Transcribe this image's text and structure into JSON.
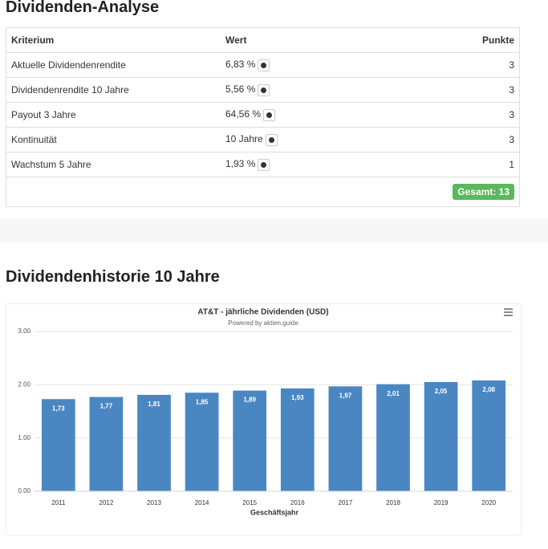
{
  "title": "Dividenden-Analyse",
  "table": {
    "header": [
      "Kriterium",
      "Wert",
      "Punkte"
    ],
    "rows": [
      [
        "Aktuelle Dividendenrendite",
        "6,83 %",
        3
      ],
      [
        "Dividendenrendite 10 Jahre",
        "5,56 %",
        3
      ],
      [
        "Payout 3 Jahre",
        "64,56 %",
        3
      ],
      [
        "Kontinuität",
        "10 Jahre",
        3
      ],
      [
        "Wachstum 5 Jahre",
        "1,93 %",
        1
      ]
    ],
    "total": "Gesamt: 13"
  },
  "section_title": "Dividendenhistorie 10 Jahre",
  "chart_data": {
    "type": "bar",
    "title": "AT&T - jährliche Dividenden (USD)",
    "subtitle": "Powered by aktien.guide",
    "xlabel": "Geschäftsjahr",
    "categories": [
      "2011",
      "2012",
      "2013",
      "2014",
      "2015",
      "2016",
      "2017",
      "2018",
      "2019",
      "2020"
    ],
    "values": [
      1.73,
      1.77,
      1.81,
      1.85,
      1.89,
      1.93,
      1.97,
      2.01,
      2.05,
      2.08
    ],
    "value_labels": [
      "1,73",
      "1,77",
      "1,81",
      "1,85",
      "1,89",
      "1,93",
      "1,97",
      "2,01",
      "2,05",
      "2,08"
    ],
    "color": "#4a87c2",
    "ylim": [
      0,
      3
    ],
    "yticks": [
      {
        "value": 0,
        "label": "0.00"
      },
      {
        "value": 1,
        "label": "1.00"
      },
      {
        "value": 2,
        "label": "2.00"
      },
      {
        "value": 3,
        "label": "3.00"
      }
    ],
    "grid": true
  }
}
